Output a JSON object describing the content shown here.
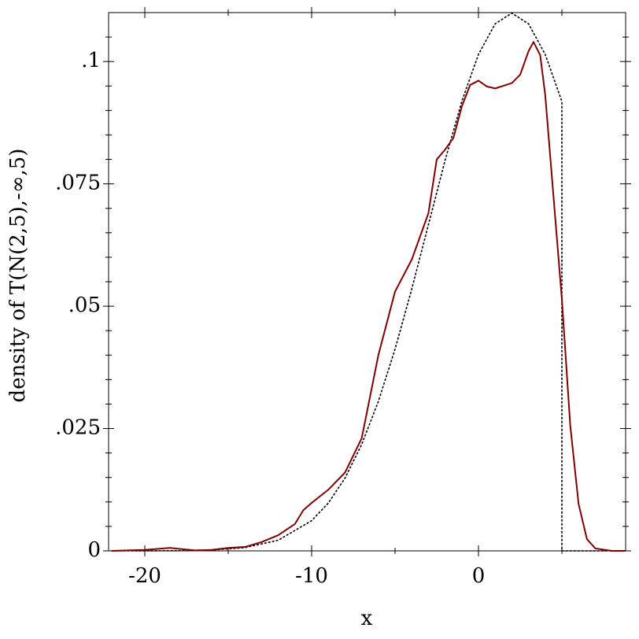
{
  "chart_data": {
    "type": "line",
    "xlabel": "x",
    "ylabel": "density of T(N(2,5),-∞,5)",
    "xlim": [
      -22.17,
      8.82
    ],
    "ylim": [
      0,
      0.11
    ],
    "xticks": [
      -20,
      -10,
      0
    ],
    "xminorticks": [
      -15,
      -5,
      5
    ],
    "yticks": [
      0,
      {
        "value": 0.025,
        "label": ".025"
      },
      {
        "value": 0.05,
        "label": ".05"
      },
      {
        "value": 0.075,
        "label": ".075"
      },
      {
        "value": 0.1,
        "label": ".1"
      }
    ],
    "yminorticks": [
      0.005,
      0.01,
      0.015,
      0.02,
      0.03,
      0.035,
      0.04,
      0.045,
      0.055,
      0.06,
      0.065,
      0.07,
      0.08,
      0.085,
      0.09,
      0.095,
      0.105
    ],
    "series": [
      {
        "color": "#000000",
        "dash": true,
        "x": [
          -22,
          -20,
          -18,
          -16,
          -14,
          -12,
          -10,
          -9,
          -8,
          -7,
          -6,
          -5,
          -4,
          -3,
          -2,
          -1,
          0,
          1,
          2,
          3,
          4,
          5,
          5,
          8.8
        ],
        "values": [
          0,
          6.9e-06,
          3.68e-05,
          0.000168,
          0.000657,
          0.00218,
          0.00617,
          0.00977,
          0.01487,
          0.02175,
          0.03055,
          0.04124,
          0.05349,
          0.06666,
          0.07981,
          0.09185,
          0.10146,
          0.1077,
          0.1099,
          0.1077,
          0.10146,
          0.09185,
          0,
          0
        ]
      },
      {
        "color": "#7f0000",
        "dash": false,
        "x": [
          -22,
          -20,
          -18.5,
          -17,
          -16,
          -15,
          -14,
          -13,
          -12,
          -11,
          -10.5,
          -10,
          -9,
          -8,
          -7,
          -6,
          -5,
          -4,
          -3,
          -2.5,
          -2,
          -1.5,
          -1,
          -0.5,
          0,
          0.5,
          1,
          2,
          2.5,
          3,
          3.3,
          3.7,
          4,
          4.5,
          5,
          5.5,
          6,
          6.5,
          7,
          8,
          8.8
        ],
        "values": [
          0,
          0.0002,
          0.0006,
          0.0001,
          0.0002,
          0.0006,
          0.0008,
          0.0018,
          0.0032,
          0.0055,
          0.0083,
          0.0098,
          0.0125,
          0.016,
          0.023,
          0.04,
          0.053,
          0.0595,
          0.069,
          0.08,
          0.082,
          0.0844,
          0.0908,
          0.0952,
          0.0961,
          0.0949,
          0.0945,
          0.0956,
          0.0973,
          0.1021,
          0.104,
          0.1013,
          0.0932,
          0.0723,
          0.0514,
          0.0257,
          0.0096,
          0.0024,
          0.0005,
          0,
          0
        ]
      }
    ]
  }
}
